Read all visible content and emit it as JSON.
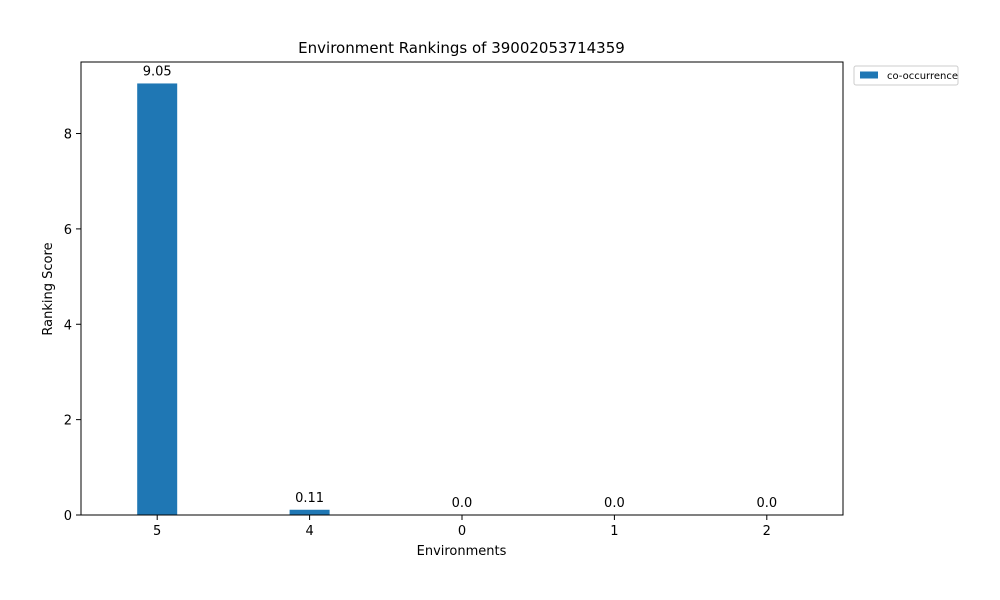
{
  "chart_data": {
    "type": "bar",
    "title": "Environment Rankings of 39002053714359",
    "xlabel": "Environments",
    "ylabel": "Ranking Score",
    "categories": [
      "5",
      "4",
      "0",
      "1",
      "2"
    ],
    "series": [
      {
        "name": "co-occurrence",
        "values": [
          9.05,
          0.11,
          0.0,
          0.0,
          0.0
        ],
        "labels": [
          "9.05",
          "0.11",
          "0.0",
          "0.0",
          "0.0"
        ],
        "color": "#1f77b4"
      }
    ],
    "ylim": [
      0,
      9.5
    ],
    "yticks": [
      0,
      2,
      4,
      6,
      8
    ],
    "grid": false,
    "legend_position": "outside-top-right"
  }
}
